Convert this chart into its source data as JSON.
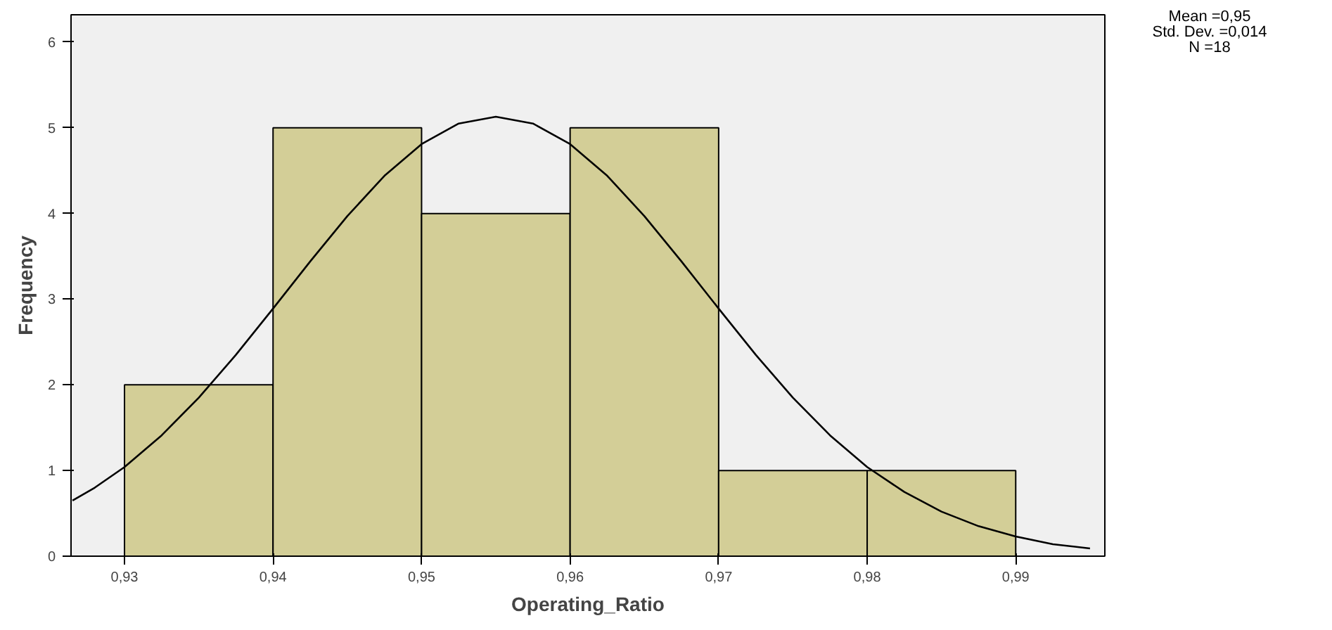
{
  "chart_data": {
    "type": "histogram",
    "xlabel": "Operating_Ratio",
    "ylabel": "Frequency",
    "bins": [
      0.93,
      0.94,
      0.95,
      0.96,
      0.97,
      0.98,
      0.99
    ],
    "values": [
      2,
      5,
      4,
      5,
      1,
      1
    ],
    "color": "#d3ce97",
    "series": [
      {
        "type": "line",
        "color": "#000000",
        "x": [
          0.9265,
          0.928,
          0.93,
          0.9325,
          0.935,
          0.9375,
          0.94,
          0.9425,
          0.945,
          0.9475,
          0.95,
          0.9525,
          0.955,
          0.9575,
          0.96,
          0.9625,
          0.965,
          0.9675,
          0.97,
          0.9725,
          0.975,
          0.9775,
          0.98,
          0.9825,
          0.985,
          0.9875,
          0.99,
          0.9925,
          0.995
        ],
        "values": [
          0.65,
          0.8,
          1.04,
          1.41,
          1.85,
          2.35,
          2.89,
          3.44,
          3.97,
          4.44,
          4.81,
          5.05,
          5.13,
          5.05,
          4.81,
          4.44,
          3.97,
          3.44,
          2.89,
          2.35,
          1.85,
          1.41,
          1.04,
          0.75,
          0.52,
          0.35,
          0.23,
          0.14,
          0.09
        ]
      }
    ],
    "xlim": [
      0.9264,
      0.996
    ],
    "ylim": [
      0,
      6.32
    ],
    "xticks": [
      {
        "value": 0.93,
        "label": "0,93"
      },
      {
        "value": 0.94,
        "label": "0,94"
      },
      {
        "value": 0.95,
        "label": "0,95"
      },
      {
        "value": 0.96,
        "label": "0,96"
      },
      {
        "value": 0.97,
        "label": "0,97"
      },
      {
        "value": 0.98,
        "label": "0,98"
      },
      {
        "value": 0.99,
        "label": "0,99"
      }
    ],
    "yticks": [
      0,
      1,
      2,
      3,
      4,
      5,
      6
    ],
    "annotations": [
      "Mean =0,95",
      "Std. Dev. =0,014",
      "N =18"
    ],
    "grid": false
  }
}
